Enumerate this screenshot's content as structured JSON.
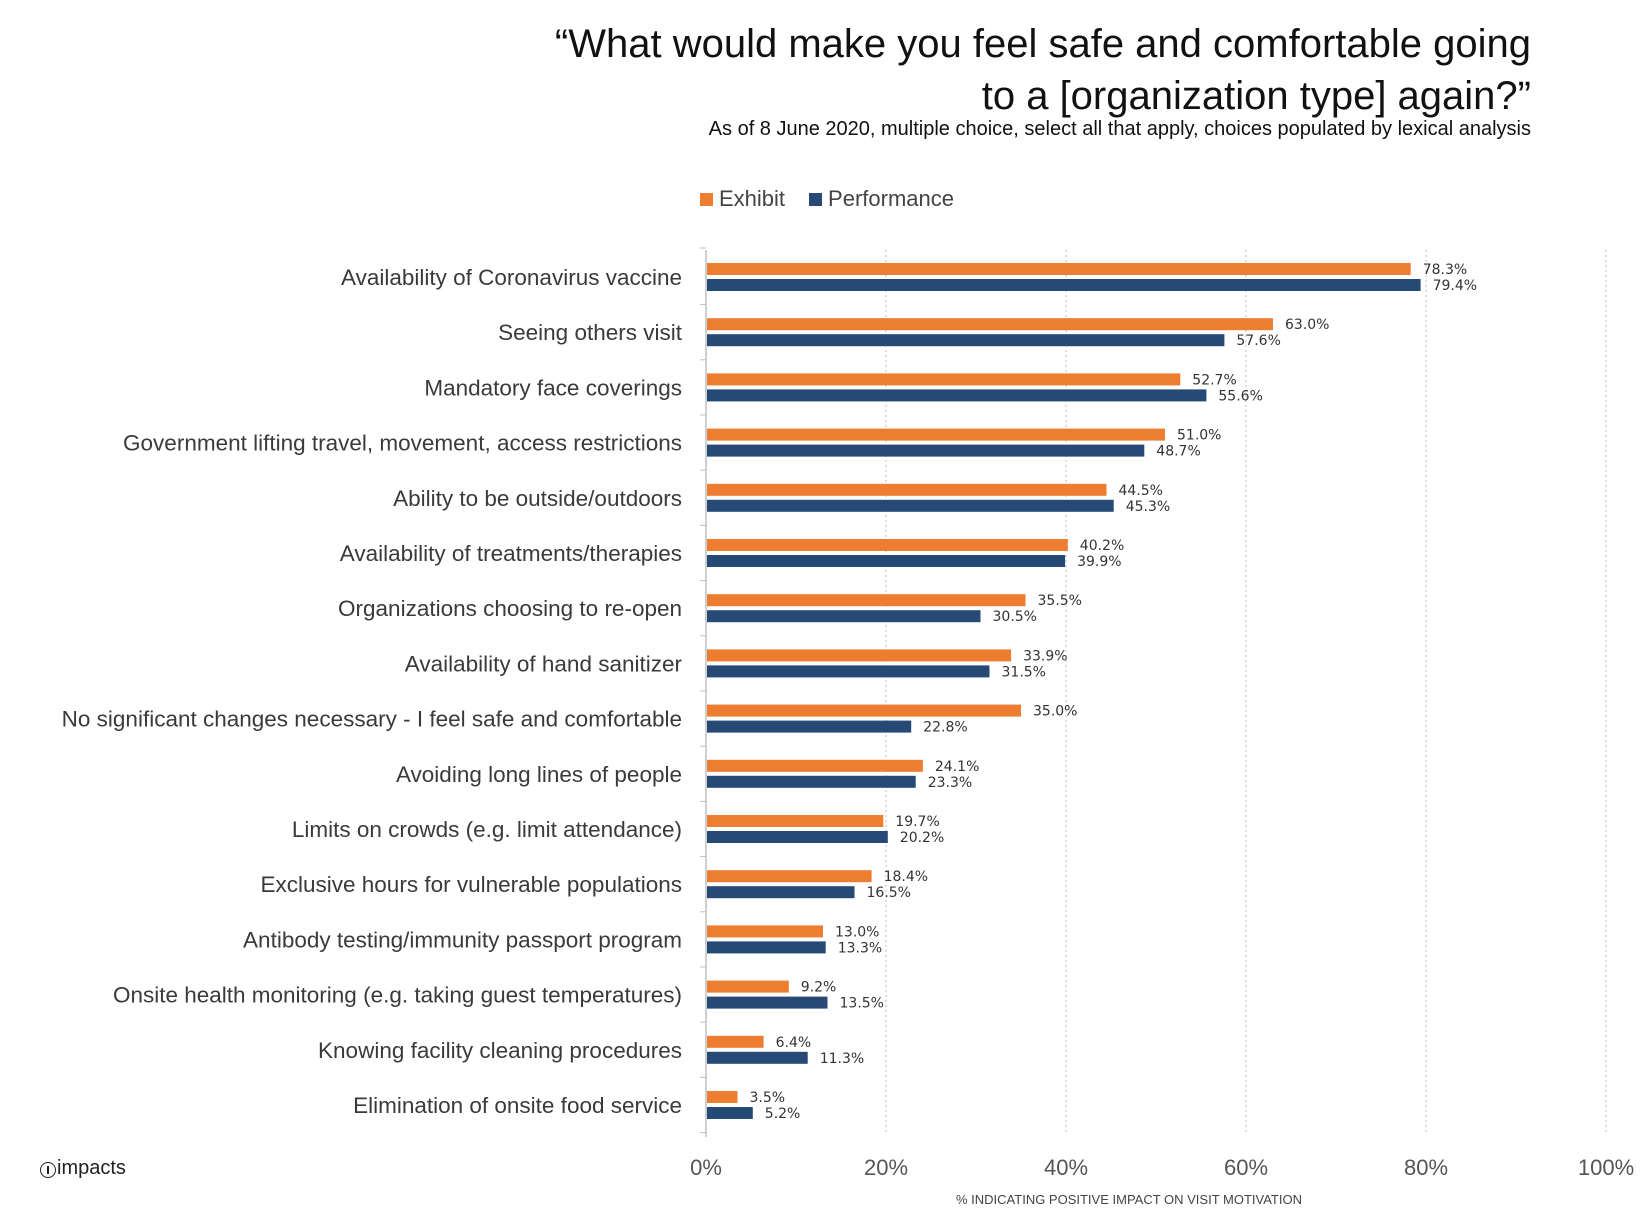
{
  "header": {
    "title_line1": "“What would make you feel safe and comfortable going",
    "title_line2": "to a [organization type] again?”",
    "subtitle": "As of 8 June 2020, multiple choice, select all that apply, choices populated by lexical analysis"
  },
  "logo": {
    "text": "impacts",
    "icon": "info-circle-icon"
  },
  "chart_data": {
    "type": "bar",
    "orientation": "horizontal",
    "title": "“What would make you feel safe and comfortable going to a [organization type] again?”",
    "xlabel": "% INDICATING POSITIVE IMPACT ON VISIT MOTIVATION",
    "ylabel": "",
    "xlim": [
      0,
      100
    ],
    "xticks": [
      "0%",
      "20%",
      "40%",
      "60%",
      "80%",
      "100%"
    ],
    "xtick_values": [
      0,
      20,
      40,
      60,
      80,
      100
    ],
    "grid": "vertical-dotted",
    "legend_placement": "top-center",
    "categories": [
      "Availability of Coronavirus vaccine",
      "Seeing others visit",
      "Mandatory face coverings",
      "Government lifting travel, movement, access restrictions",
      "Ability to be outside/outdoors",
      "Availability of treatments/therapies",
      "Organizations choosing to re-open",
      "Availability of hand sanitizer",
      "No significant changes necessary - I feel safe and comfortable",
      "Avoiding long lines of people",
      "Limits on crowds (e.g. limit attendance)",
      "Exclusive hours for vulnerable populations",
      "Antibody testing/immunity passport program",
      "Onsite health monitoring (e.g. taking guest temperatures)",
      "Knowing facility cleaning procedures",
      "Elimination of onsite food service"
    ],
    "series": [
      {
        "name": "Exhibit",
        "color": "#ED7D31",
        "values": [
          78.3,
          63.0,
          52.7,
          51.0,
          44.5,
          40.2,
          35.5,
          33.9,
          35.0,
          24.1,
          19.7,
          18.4,
          13.0,
          9.2,
          6.4,
          3.5
        ],
        "labels": [
          "78.3%",
          "63.0%",
          "52.7%",
          "51.0%",
          "44.5%",
          "40.2%",
          "35.5%",
          "33.9%",
          "35.0%",
          "24.1%",
          "19.7%",
          "18.4%",
          "13.0%",
          "9.2%",
          "6.4%",
          "3.5%"
        ]
      },
      {
        "name": "Performance",
        "color": "#264A75",
        "values": [
          79.4,
          57.6,
          55.6,
          48.7,
          45.3,
          39.9,
          30.5,
          31.5,
          22.8,
          23.3,
          20.2,
          16.5,
          13.3,
          13.5,
          11.3,
          5.2
        ],
        "labels": [
          "79.4%",
          "57.6%",
          "55.6%",
          "48.7%",
          "45.3%",
          "39.9%",
          "30.5%",
          "31.5%",
          "22.8%",
          "23.3%",
          "20.2%",
          "16.5%",
          "13.3%",
          "13.5%",
          "11.3%",
          "5.2%"
        ]
      }
    ]
  }
}
